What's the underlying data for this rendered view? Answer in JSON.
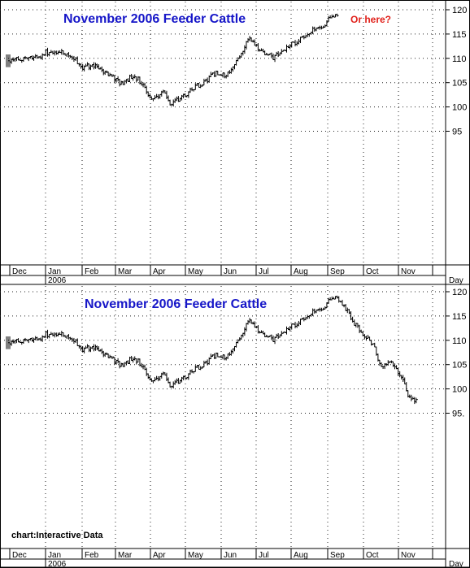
{
  "chart_data": [
    {
      "type": "ohlc",
      "title": "November 2006 Feeder Cattle",
      "annotation": "Or here?",
      "months": [
        "Dec",
        "Jan",
        "Feb",
        "Mar",
        "Apr",
        "May",
        "Jun",
        "Jul",
        "Aug",
        "Sep",
        "Oct",
        "Nov"
      ],
      "year_label": "2006",
      "x_axis_label": "Day",
      "y_ticks": [
        95,
        100,
        105,
        110,
        115,
        120
      ],
      "ylim": [
        92.5,
        120.5
      ],
      "grid": true,
      "series": [
        {
          "values": [
            [
              0,
              109.5
            ],
            [
              0.35,
              109.8
            ],
            [
              0.65,
              110.2
            ],
            [
              0.95,
              110.5
            ],
            [
              1.0,
              111.2
            ],
            [
              1.3,
              111.5
            ],
            [
              1.6,
              110.8
            ],
            [
              1.85,
              109.5
            ],
            [
              2.0,
              108.2
            ],
            [
              2.3,
              108.5
            ],
            [
              2.6,
              107.5
            ],
            [
              2.85,
              106.5
            ],
            [
              3.0,
              105.5
            ],
            [
              3.2,
              104.8
            ],
            [
              3.5,
              106.5
            ],
            [
              3.75,
              105.0
            ],
            [
              3.9,
              103.0
            ],
            [
              4.0,
              101.5
            ],
            [
              4.2,
              102.5
            ],
            [
              4.4,
              102.8
            ],
            [
              4.6,
              100.5
            ],
            [
              4.75,
              101.5
            ],
            [
              5.0,
              102.5
            ],
            [
              5.2,
              104.0
            ],
            [
              5.5,
              104.8
            ],
            [
              5.75,
              106.8
            ],
            [
              6.0,
              107.0
            ],
            [
              6.15,
              106.2
            ],
            [
              6.35,
              108.5
            ],
            [
              6.55,
              111.0
            ],
            [
              6.75,
              113.5
            ],
            [
              6.9,
              114.0
            ],
            [
              7.0,
              112.5
            ],
            [
              7.25,
              111.0
            ],
            [
              7.5,
              110.0
            ],
            [
              7.8,
              112.0
            ],
            [
              8.0,
              113.0
            ],
            [
              8.3,
              114.0
            ],
            [
              8.6,
              116.0
            ],
            [
              8.9,
              117.0
            ],
            [
              9.0,
              117.8
            ],
            [
              9.15,
              118.5
            ],
            [
              9.3,
              118.6
            ]
          ]
        }
      ]
    },
    {
      "type": "ohlc",
      "title": "November 2006 Feeder Cattle",
      "months": [
        "Dec",
        "Jan",
        "Feb",
        "Mar",
        "Apr",
        "May",
        "Jun",
        "Jul",
        "Aug",
        "Sep",
        "Oct",
        "Nov"
      ],
      "year_label": "2006",
      "x_axis_label": "Day",
      "y_ticks": [
        95,
        100,
        105,
        110,
        115,
        120
      ],
      "ylim": [
        92.5,
        120.5
      ],
      "grid": true,
      "series": [
        {
          "values": [
            [
              0,
              109.5
            ],
            [
              0.35,
              109.8
            ],
            [
              0.65,
              110.2
            ],
            [
              0.95,
              110.5
            ],
            [
              1.0,
              111.2
            ],
            [
              1.3,
              111.5
            ],
            [
              1.6,
              110.8
            ],
            [
              1.85,
              109.5
            ],
            [
              2.0,
              108.2
            ],
            [
              2.3,
              108.5
            ],
            [
              2.6,
              107.5
            ],
            [
              2.85,
              106.5
            ],
            [
              3.0,
              105.5
            ],
            [
              3.2,
              104.8
            ],
            [
              3.5,
              106.5
            ],
            [
              3.75,
              105.0
            ],
            [
              3.9,
              103.0
            ],
            [
              4.0,
              101.5
            ],
            [
              4.2,
              102.5
            ],
            [
              4.4,
              102.8
            ],
            [
              4.6,
              100.5
            ],
            [
              4.75,
              101.5
            ],
            [
              5.0,
              102.5
            ],
            [
              5.2,
              104.0
            ],
            [
              5.5,
              104.8
            ],
            [
              5.75,
              106.8
            ],
            [
              6.0,
              107.0
            ],
            [
              6.15,
              106.2
            ],
            [
              6.35,
              108.5
            ],
            [
              6.55,
              111.0
            ],
            [
              6.75,
              113.5
            ],
            [
              6.9,
              114.0
            ],
            [
              7.0,
              112.5
            ],
            [
              7.25,
              111.0
            ],
            [
              7.5,
              110.0
            ],
            [
              7.8,
              112.0
            ],
            [
              8.0,
              113.0
            ],
            [
              8.3,
              114.0
            ],
            [
              8.6,
              116.0
            ],
            [
              8.9,
              117.0
            ],
            [
              9.0,
              117.8
            ],
            [
              9.15,
              118.5
            ],
            [
              9.3,
              118.6
            ],
            [
              9.5,
              116.5
            ],
            [
              9.75,
              113.5
            ],
            [
              10.0,
              111.0
            ],
            [
              10.25,
              109.5
            ],
            [
              10.5,
              104.5
            ],
            [
              10.75,
              105.5
            ],
            [
              11.0,
              103.5
            ],
            [
              11.1,
              102.5
            ],
            [
              11.25,
              99.0
            ],
            [
              11.35,
              98.0
            ],
            [
              11.55,
              97.5
            ]
          ]
        }
      ],
      "source_label": "chart:Interactive Data"
    }
  ]
}
